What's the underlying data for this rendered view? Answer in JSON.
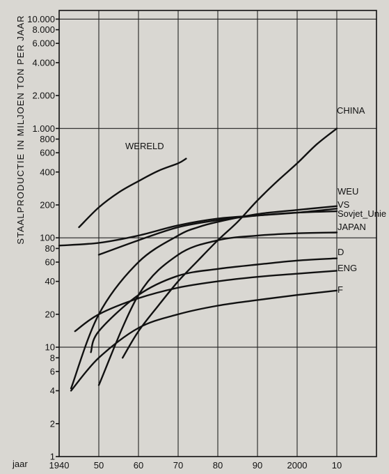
{
  "chart_data": {
    "type": "line",
    "ylabel": "STAALPRODUCTIE IN MILJOEN TON PER JAAR",
    "xlabel": "jaar",
    "y_scale": "log",
    "ylim": [
      1,
      12000
    ],
    "xlim": [
      1940,
      2020
    ],
    "grid": true,
    "x_ticks": [
      1940,
      1950,
      1960,
      1970,
      1980,
      1990,
      2000,
      2010
    ],
    "x_tick_labels": [
      "1940",
      "50",
      "60",
      "70",
      "80",
      "90",
      "2000",
      "10"
    ],
    "y_ticks": [
      1,
      2,
      4,
      6,
      8,
      10,
      20,
      40,
      60,
      80,
      100,
      200,
      400,
      600,
      800,
      1000,
      2000,
      4000,
      6000,
      8000,
      10000
    ],
    "y_tick_labels": [
      "1",
      "2",
      "4",
      "6",
      "8",
      "10",
      "20",
      "40",
      "60",
      "80",
      "100",
      "200",
      "400",
      "600",
      "800",
      "1.000",
      "2.000",
      "4.000",
      "6.000",
      "8.000",
      "10.000"
    ],
    "series": [
      {
        "name": "WERELD",
        "x": [
          1945,
          1950,
          1955,
          1960,
          1965,
          1970,
          1972
        ],
        "y": [
          125,
          190,
          260,
          330,
          410,
          480,
          530
        ]
      },
      {
        "name": "CHINA",
        "x": [
          1956,
          1960,
          1965,
          1970,
          1975,
          1980,
          1985,
          1990,
          1995,
          2000,
          2005,
          2010
        ],
        "y": [
          8,
          14,
          24,
          40,
          62,
          95,
          140,
          220,
          330,
          480,
          720,
          1000
        ]
      },
      {
        "name": "WEU",
        "x": [
          1943,
          1950,
          1960,
          1970,
          1975,
          1980,
          1990,
          2000,
          2010
        ],
        "y": [
          4.2,
          20,
          60,
          105,
          125,
          140,
          165,
          180,
          195
        ]
      },
      {
        "name": "VS",
        "x": [
          1940,
          1950,
          1960,
          1970,
          1980,
          1990,
          2000,
          2010
        ],
        "y": [
          85,
          90,
          105,
          130,
          150,
          160,
          170,
          185
        ]
      },
      {
        "name": "Sovjet_Unie",
        "x": [
          1950,
          1960,
          1970,
          1980,
          1990,
          2000,
          2010
        ],
        "y": [
          70,
          95,
          125,
          145,
          160,
          170,
          175
        ]
      },
      {
        "name": "JAPAN",
        "x": [
          1950,
          1960,
          1970,
          1980,
          1990,
          2000,
          2010
        ],
        "y": [
          4.5,
          30,
          70,
          95,
          105,
          110,
          112
        ]
      },
      {
        "name": "D",
        "x": [
          1948,
          1950,
          1960,
          1970,
          1980,
          1990,
          2000,
          2010
        ],
        "y": [
          9,
          14,
          30,
          45,
          52,
          57,
          62,
          65
        ]
      },
      {
        "name": "ENG",
        "x": [
          1944,
          1950,
          1960,
          1970,
          1980,
          1990,
          2000,
          2010
        ],
        "y": [
          14,
          20,
          28,
          35,
          40,
          44,
          47,
          50
        ]
      },
      {
        "name": "F",
        "x": [
          1943,
          1950,
          1960,
          1970,
          1980,
          1990,
          2000,
          2010
        ],
        "y": [
          4,
          8,
          15,
          20,
          24,
          27,
          30,
          33
        ]
      }
    ],
    "series_labels": [
      "WERELD",
      "CHINA",
      "WEU",
      "VS",
      "Sovjet_Unie",
      "JAPAN",
      "D",
      "ENG",
      "F"
    ]
  },
  "colors": {
    "background": "#d9d7d2",
    "ink": "#111111"
  }
}
